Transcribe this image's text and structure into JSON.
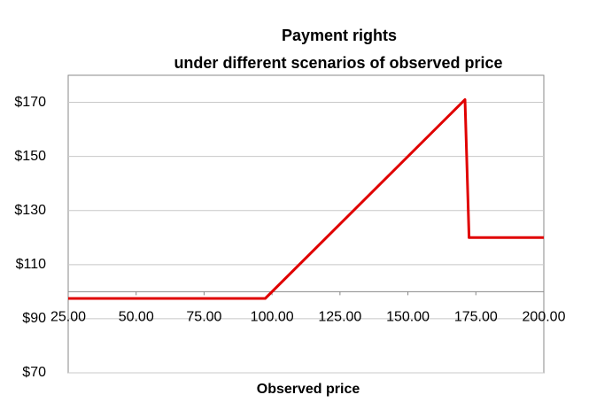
{
  "chart_data": {
    "type": "line",
    "title": "Payment rights",
    "subtitle": "under different scenarios of observed price",
    "x_label": "Observed price",
    "x": [
      25,
      97.5,
      171,
      172.5,
      200
    ],
    "series": [
      {
        "name": "Payment rights",
        "color": "#e00000",
        "values": [
          97.5,
          97.5,
          171,
          120,
          120
        ]
      }
    ],
    "xlim": [
      25,
      200
    ],
    "xticks": [
      {
        "value": 25,
        "label": "25.00"
      },
      {
        "value": 50,
        "label": "50.00"
      },
      {
        "value": 75,
        "label": "75.00"
      },
      {
        "value": 100,
        "label": "100.00"
      },
      {
        "value": 125,
        "label": "125.00"
      },
      {
        "value": 150,
        "label": "150.00"
      },
      {
        "value": 175,
        "label": "175.00"
      },
      {
        "value": 200,
        "label": "200.00"
      }
    ],
    "ylim": [
      70,
      180
    ],
    "yticks": [
      {
        "value": 70,
        "label": "$70"
      },
      {
        "value": 90,
        "label": "$90"
      },
      {
        "value": 110,
        "label": "$110"
      },
      {
        "value": 130,
        "label": "$130"
      },
      {
        "value": 150,
        "label": "$150"
      },
      {
        "value": 170,
        "label": "$170"
      }
    ],
    "x_axis_crosses_at": 100,
    "grid": true
  }
}
